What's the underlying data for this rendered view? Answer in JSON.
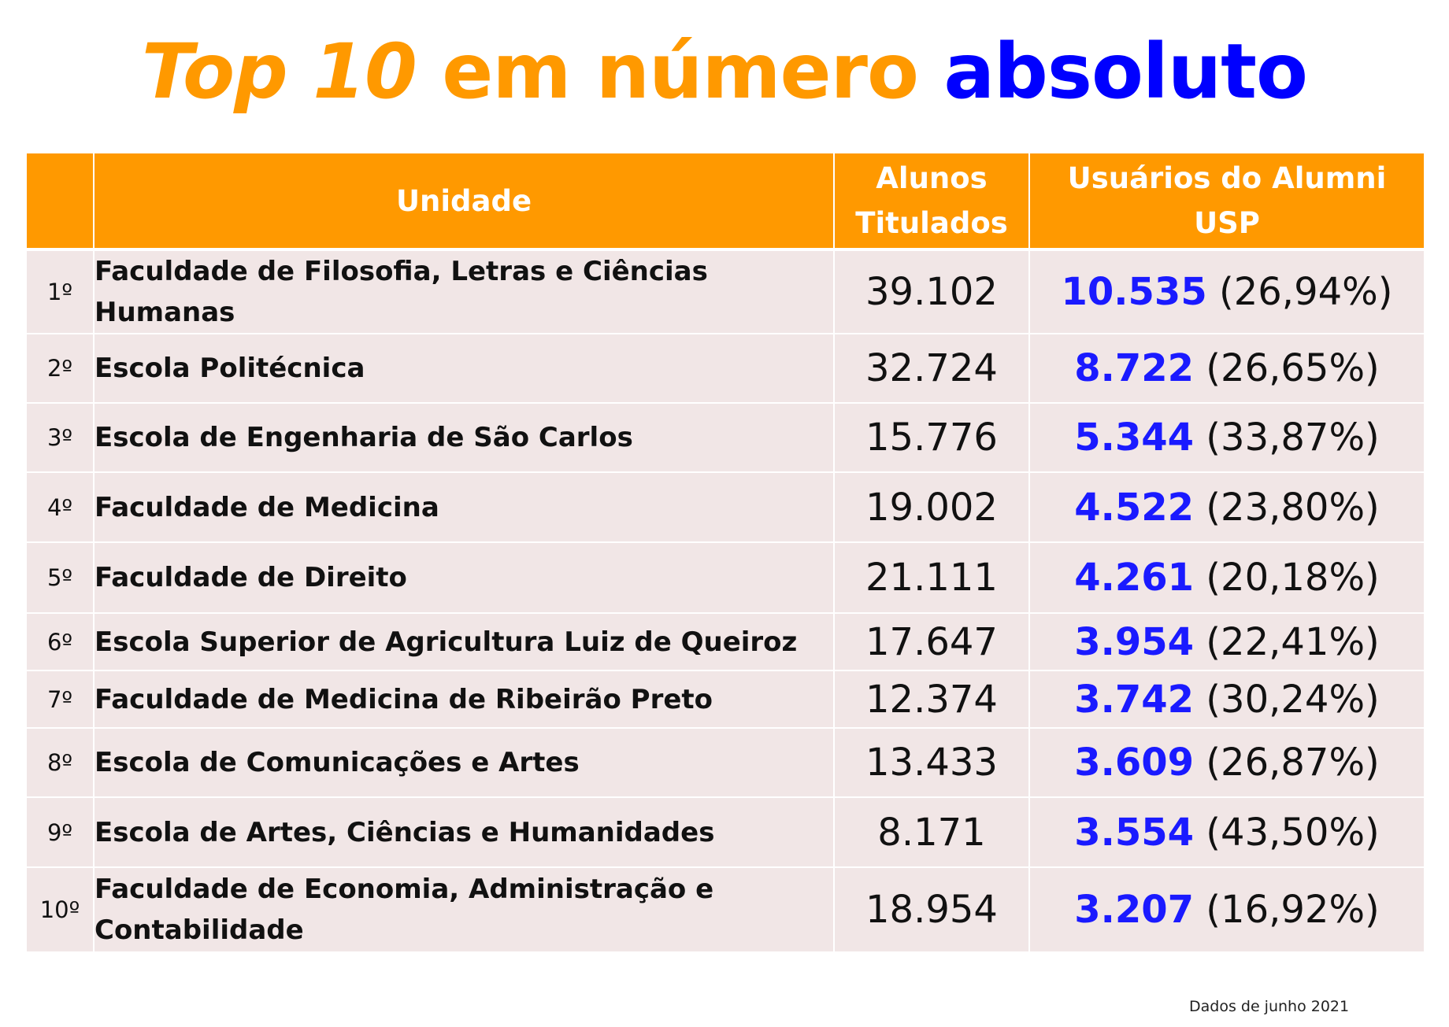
{
  "title": {
    "part1": "Top 10",
    "part2": "em número",
    "part3": "absoluto"
  },
  "table": {
    "headers": {
      "rank": "",
      "unidade": "Unidade",
      "alunos": "Alunos Titulados",
      "usuarios": "Usuários do Alumni USP"
    },
    "rows": [
      {
        "rank": "1º",
        "unidade": "Faculdade de Filosofia, Letras e Ciências Humanas",
        "alunos": "39.102",
        "usuarios": "10.535",
        "pct": "(26,94%)"
      },
      {
        "rank": "2º",
        "unidade": "Escola Politécnica",
        "alunos": "32.724",
        "usuarios": "8.722",
        "pct": "(26,65%)"
      },
      {
        "rank": "3º",
        "unidade": "Escola de Engenharia de São Carlos",
        "alunos": "15.776",
        "usuarios": "5.344",
        "pct": "(33,87%)"
      },
      {
        "rank": "4º",
        "unidade": "Faculdade de Medicina",
        "alunos": "19.002",
        "usuarios": "4.522",
        "pct": "(23,80%)"
      },
      {
        "rank": "5º",
        "unidade": "Faculdade de Direito",
        "alunos": "21.111",
        "usuarios": "4.261",
        "pct": "(20,18%)"
      },
      {
        "rank": "6º",
        "unidade": "Escola Superior de Agricultura Luiz de Queiroz",
        "alunos": "17.647",
        "usuarios": "3.954",
        "pct": "(22,41%)"
      },
      {
        "rank": "7º",
        "unidade": "Faculdade de Medicina de Ribeirão Preto",
        "alunos": "12.374",
        "usuarios": "3.742",
        "pct": "(30,24%)"
      },
      {
        "rank": "8º",
        "unidade": "Escola de Comunicações e Artes",
        "alunos": "13.433",
        "usuarios": "3.609",
        "pct": "(26,87%)"
      },
      {
        "rank": "9º",
        "unidade": "Escola de Artes, Ciências e Humanidades",
        "alunos": "8.171",
        "usuarios": "3.554",
        "pct": "(43,50%)"
      },
      {
        "rank": "10º",
        "unidade": "Faculdade de Economia, Administração e Contabilidade",
        "alunos": "18.954",
        "usuarios": "3.207",
        "pct": "(16,92%)"
      }
    ]
  },
  "footnote": "Dados de junho 2021",
  "colors": {
    "orange": "#ff9900",
    "blue": "#0000ff",
    "number_blue": "#1a1aff",
    "row_bg": "#f1e6e6"
  }
}
